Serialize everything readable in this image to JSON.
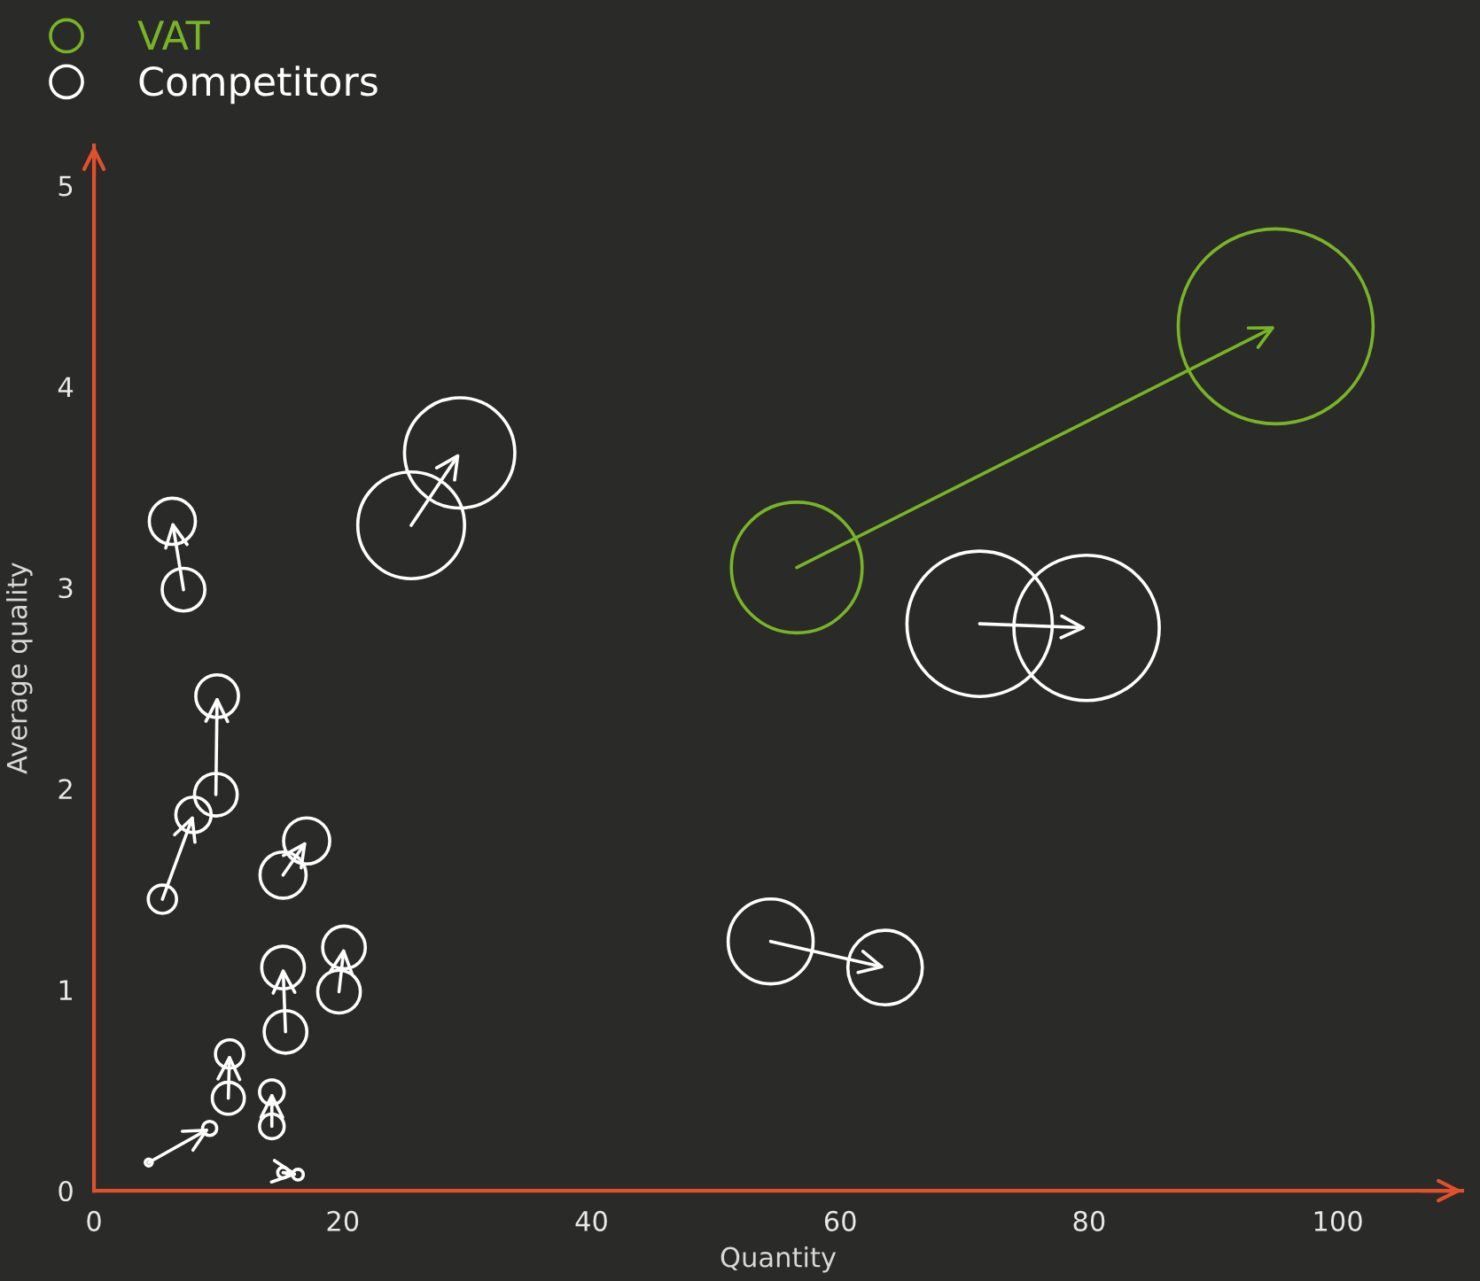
{
  "chart_data": {
    "type": "bubble",
    "xlabel": "Quantity",
    "ylabel": "Average quality",
    "xlim": [
      0,
      110
    ],
    "xticks": [
      0,
      20,
      40,
      60,
      80,
      100
    ],
    "ylim": [
      0,
      5.2
    ],
    "yticks": [
      0,
      1,
      2,
      3,
      4,
      5
    ],
    "grid": false,
    "legend": "top left",
    "marker": "circle",
    "series": [
      {
        "name": "VAT",
        "color": "#78b526",
        "x": [
          56.5,
          95.0
        ],
        "values": [
          3.1,
          4.3
        ],
        "sizes": [
          0.45,
          1
        ]
      },
      {
        "name": "Competitors",
        "color": "#ffffff",
        "x": [
          25.5,
          29.4,
          7.2,
          6.3,
          9.8,
          9.9,
          5.5,
          8.0,
          15.2,
          17.1,
          15.4,
          15.2,
          19.7,
          20.1,
          10.8,
          10.9,
          14.3,
          14.3,
          4.4,
          9.3,
          15.2,
          16.4,
          54.4,
          63.6,
          71.2,
          79.8
        ],
        "values": [
          3.31,
          3.67,
          2.99,
          3.33,
          1.97,
          2.46,
          1.45,
          1.87,
          1.57,
          1.74,
          0.79,
          1.11,
          0.99,
          1.21,
          0.46,
          0.68,
          0.32,
          0.49,
          0.14,
          0.31,
          0.09,
          0.08,
          1.24,
          1.11,
          2.82,
          2.8
        ],
        "sizes": [
          0.3,
          0.32,
          0.048,
          0.056,
          0.048,
          0.048,
          0.021,
          0.033,
          0.056,
          0.056,
          0.048,
          0.048,
          0.048,
          0.048,
          0.027,
          0.021,
          0.016,
          0.016,
          0.0013,
          0.0053,
          0.003,
          0.003,
          0.19,
          0.146,
          0.556,
          0.556
        ]
      }
    ]
  }
}
